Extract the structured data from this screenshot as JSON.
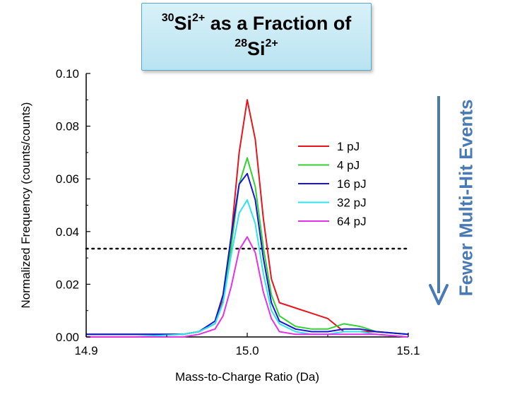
{
  "title": {
    "mass_a": "30",
    "element_a": "Si",
    "charge_a": "2+",
    "middle": " as a Fraction of",
    "mass_b": "28",
    "element_b": "Si",
    "charge_b": "2+"
  },
  "side_annotation": "Fewer Multi-Hit Events",
  "chart_data": {
    "type": "line",
    "xlabel": "Mass-to-Charge Ratio (Da)",
    "ylabel": "Normalized Frequency (counts/counts)",
    "xlim": [
      14.9,
      15.1
    ],
    "ylim": [
      0.0,
      0.1
    ],
    "xticks": [
      "14.9",
      "15.0",
      "15.1"
    ],
    "xtick_values": [
      14.9,
      15.0,
      15.1
    ],
    "yticks": [
      "0.00",
      "0.02",
      "0.04",
      "0.06",
      "0.08",
      "0.10"
    ],
    "ytick_values": [
      0.0,
      0.02,
      0.04,
      0.06,
      0.08,
      0.1
    ],
    "threshold": 0.0335,
    "legend_position": "upper-right",
    "series": [
      {
        "name": "1 pJ",
        "color": "#e8141c",
        "x": [
          14.9,
          14.93,
          14.96,
          14.97,
          14.98,
          14.985,
          14.99,
          14.995,
          15.0,
          15.005,
          15.01,
          15.015,
          15.02,
          15.03,
          15.04,
          15.05,
          15.06,
          15.07,
          15.08,
          15.1
        ],
        "y": [
          0.001,
          0.001,
          0.001,
          0.002,
          0.005,
          0.014,
          0.038,
          0.07,
          0.09,
          0.075,
          0.045,
          0.022,
          0.013,
          0.011,
          0.009,
          0.007,
          0.002,
          0.002,
          0.002,
          0.001
        ]
      },
      {
        "name": "4 pJ",
        "color": "#33d133",
        "x": [
          14.9,
          14.93,
          14.96,
          14.97,
          14.98,
          14.985,
          14.99,
          14.995,
          15.0,
          15.005,
          15.01,
          15.015,
          15.02,
          15.03,
          15.04,
          15.05,
          15.06,
          15.07,
          15.08,
          15.1
        ],
        "y": [
          0.001,
          0.001,
          0.001,
          0.002,
          0.005,
          0.013,
          0.034,
          0.058,
          0.068,
          0.057,
          0.034,
          0.016,
          0.008,
          0.004,
          0.003,
          0.003,
          0.005,
          0.004,
          0.002,
          0.001
        ]
      },
      {
        "name": "16 pJ",
        "color": "#1515d6",
        "x": [
          14.9,
          14.93,
          14.96,
          14.97,
          14.98,
          14.985,
          14.99,
          14.995,
          15.0,
          15.005,
          15.01,
          15.015,
          15.02,
          15.03,
          15.04,
          15.05,
          15.06,
          15.07,
          15.08,
          15.1
        ],
        "y": [
          0.001,
          0.001,
          0.001,
          0.002,
          0.006,
          0.016,
          0.038,
          0.058,
          0.062,
          0.052,
          0.03,
          0.013,
          0.006,
          0.003,
          0.002,
          0.002,
          0.003,
          0.003,
          0.002,
          0.001
        ]
      },
      {
        "name": "32 pJ",
        "color": "#2fe4ee",
        "x": [
          14.9,
          14.93,
          14.96,
          14.97,
          14.98,
          14.985,
          14.99,
          14.995,
          15.0,
          15.005,
          15.01,
          15.015,
          15.02,
          15.03,
          15.04,
          15.05,
          15.06,
          15.07,
          15.08,
          15.1
        ],
        "y": [
          0.0,
          0.0,
          0.001,
          0.002,
          0.005,
          0.013,
          0.031,
          0.047,
          0.052,
          0.043,
          0.024,
          0.01,
          0.005,
          0.002,
          0.001,
          0.001,
          0.002,
          0.002,
          0.001,
          0.0
        ]
      },
      {
        "name": "64 pJ",
        "color": "#e433e4",
        "x": [
          14.9,
          14.93,
          14.96,
          14.97,
          14.98,
          14.985,
          14.99,
          14.995,
          15.0,
          15.005,
          15.01,
          15.015,
          15.02,
          15.03,
          15.04,
          15.05,
          15.06,
          15.07,
          15.08,
          15.1
        ],
        "y": [
          0.0,
          0.0,
          0.0,
          0.001,
          0.003,
          0.008,
          0.019,
          0.033,
          0.038,
          0.032,
          0.017,
          0.007,
          0.002,
          0.001,
          0.001,
          0.001,
          0.001,
          0.001,
          0.001,
          0.0
        ]
      }
    ]
  }
}
